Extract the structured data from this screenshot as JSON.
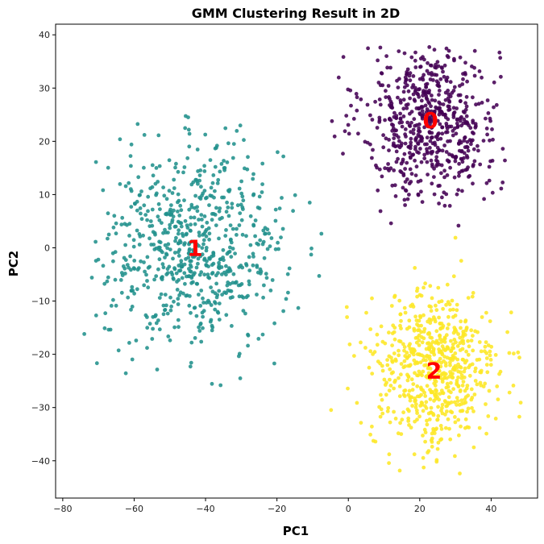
{
  "chart_data": {
    "type": "scatter",
    "title": "GMM Clustering Result in 2D",
    "xlabel": "PC1",
    "ylabel": "PC2",
    "xlim": [
      -82,
      53
    ],
    "ylim": [
      -47,
      42
    ],
    "xticks": [
      -80,
      -60,
      -40,
      -20,
      0,
      20,
      40
    ],
    "yticks": [
      -40,
      -30,
      -20,
      -10,
      0,
      10,
      20,
      30,
      40
    ],
    "grid": false,
    "legend": "none",
    "label_color": "#ff0000",
    "clusters": [
      {
        "label": "0",
        "color": "#440154",
        "center": [
          23,
          24
        ],
        "spread": [
          9.5,
          7.5
        ],
        "n_points": 620,
        "x_range": [
          -12,
          45
        ],
        "y_range": [
          3,
          38
        ]
      },
      {
        "label": "1",
        "color": "#21918c",
        "center": [
          -43,
          0
        ],
        "spread": [
          12.5,
          9.5
        ],
        "n_points": 700,
        "x_range": [
          -76,
          -7
        ],
        "y_range": [
          -26,
          25
        ]
      },
      {
        "label": "2",
        "color": "#fde725",
        "center": [
          24,
          -23
        ],
        "spread": [
          9,
          7.5
        ],
        "n_points": 650,
        "x_range": [
          -5,
          50
        ],
        "y_range": [
          -43,
          2
        ]
      }
    ]
  }
}
